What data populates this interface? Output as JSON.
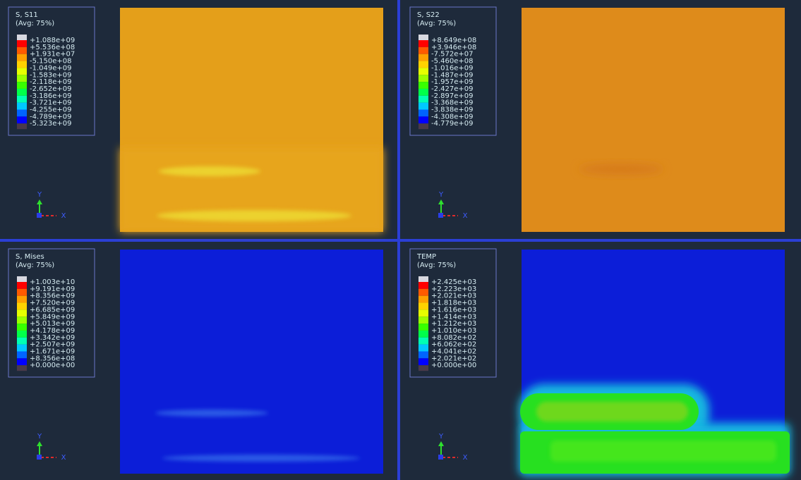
{
  "panels": [
    {
      "title": "S, S11",
      "subtitle": "(Avg: 75%)",
      "legend": [
        "+1.088e+09",
        "+5.536e+08",
        "+1.931e+07",
        "-5.150e+08",
        "-1.049e+09",
        "-1.583e+09",
        "-2.118e+09",
        "-2.652e+09",
        "-3.186e+09",
        "-3.721e+09",
        "-4.255e+09",
        "-4.789e+09",
        "-5.323e+09"
      ],
      "axes": {
        "y": "Y",
        "x": "X"
      }
    },
    {
      "title": "S, S22",
      "subtitle": "(Avg: 75%)",
      "legend": [
        "+8.649e+08",
        "+3.946e+08",
        "-7.572e+07",
        "-5.460e+08",
        "-1.016e+09",
        "-1.487e+09",
        "-1.957e+09",
        "-2.427e+09",
        "-2.897e+09",
        "-3.368e+09",
        "-3.838e+09",
        "-4.308e+09",
        "-4.779e+09"
      ],
      "axes": {
        "y": "Y",
        "x": "X"
      }
    },
    {
      "title": "S, Mises",
      "subtitle": "(Avg: 75%)",
      "legend": [
        "+1.003e+10",
        "+9.191e+09",
        "+8.356e+09",
        "+7.520e+09",
        "+6.685e+09",
        "+5.849e+09",
        "+5.013e+09",
        "+4.178e+09",
        "+3.342e+09",
        "+2.507e+09",
        "+1.671e+09",
        "+8.356e+08",
        "+0.000e+00"
      ],
      "axes": {
        "y": "Y",
        "x": "X"
      }
    },
    {
      "title": "TEMP",
      "subtitle": "(Avg: 75%)",
      "legend": [
        "+2.425e+03",
        "+2.223e+03",
        "+2.021e+03",
        "+1.818e+03",
        "+1.616e+03",
        "+1.414e+03",
        "+1.212e+03",
        "+1.010e+03",
        "+8.082e+02",
        "+6.062e+02",
        "+4.041e+02",
        "+2.021e+02",
        "+0.000e+00"
      ],
      "axes": {
        "y": "Y",
        "x": "X"
      }
    }
  ]
}
